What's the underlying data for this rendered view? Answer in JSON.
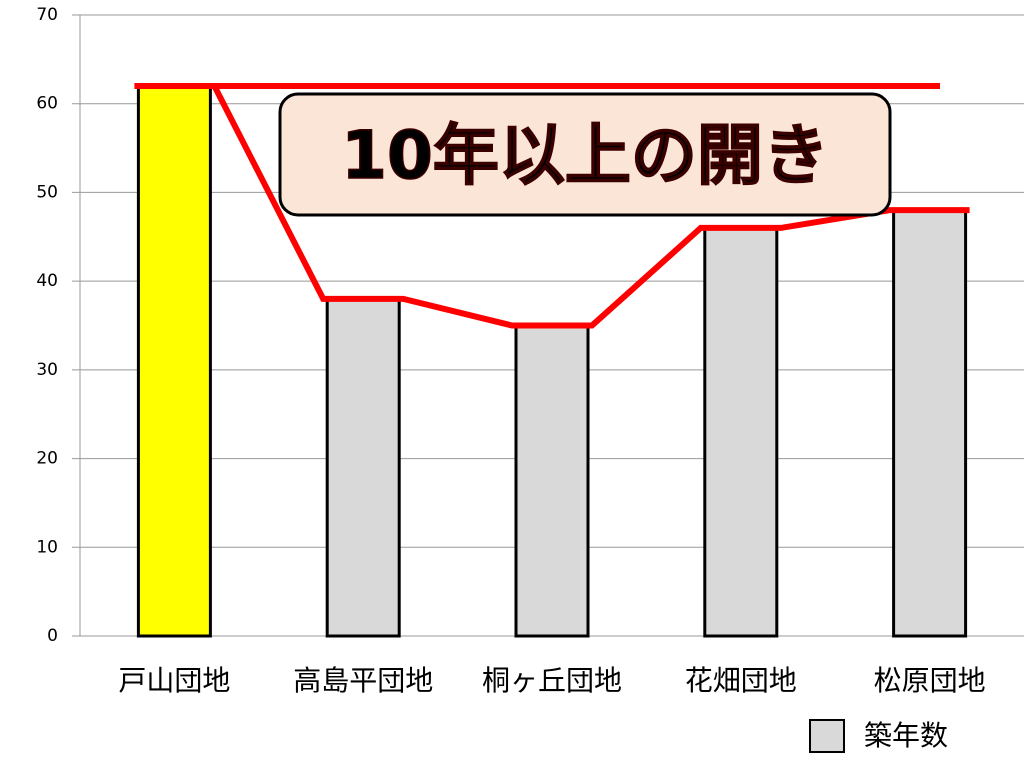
{
  "chart_data": {
    "type": "bar",
    "categories": [
      "戸山団地",
      "高島平団地",
      "桐ヶ丘団地",
      "花畑団地",
      "松原団地"
    ],
    "series": [
      {
        "name": "築年数",
        "color": "#d9d9d9",
        "values": [
          62,
          38,
          35,
          46,
          48
        ],
        "point_colors": [
          "#ffff00",
          "#d9d9d9",
          "#d9d9d9",
          "#d9d9d9",
          "#d9d9d9"
        ]
      }
    ],
    "ylim": [
      0,
      70
    ],
    "yticks": [
      0,
      10,
      20,
      30,
      40,
      50,
      60,
      70
    ],
    "grid": true,
    "annotation": "10年以上の開き",
    "highlight_color": "#ff0000",
    "legend": "bottom-right"
  }
}
